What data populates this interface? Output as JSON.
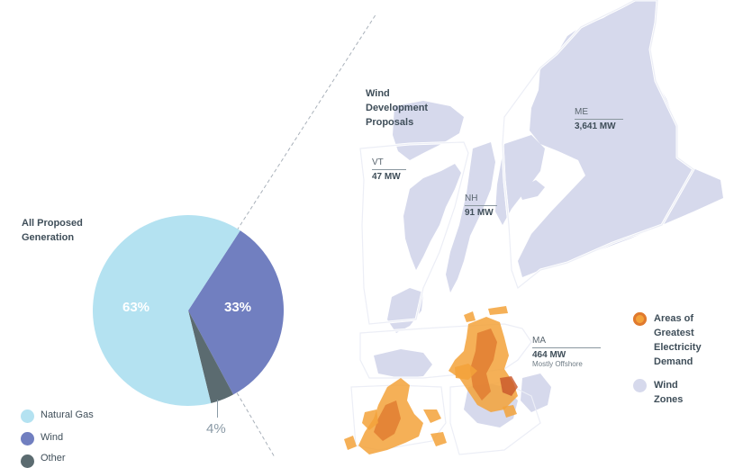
{
  "colors": {
    "natural_gas": "#b4e2f1",
    "wind": "#717fc0",
    "other": "#5b6b70",
    "wind_zone": "#d6d9ec",
    "demand_orange": "#f3a23a",
    "demand_dark": "#e07a2f",
    "state_border": "#ffffff",
    "dashed_line": "#a9b1ba"
  },
  "chart_data": [
    {
      "type": "pie",
      "title": "All Proposed Generation",
      "slices": [
        {
          "name": "Natural Gas",
          "value": 63,
          "label": "63%"
        },
        {
          "name": "Wind",
          "value": 33,
          "label": "33%"
        },
        {
          "name": "Other",
          "value": 4,
          "label": "4%"
        }
      ]
    }
  ],
  "pie_title": "All Proposed Generation",
  "pie_title_line1": "All Proposed",
  "pie_title_line2": "Generation",
  "pie_labels": {
    "natural_gas": "63%",
    "wind": "33%",
    "other": "4%"
  },
  "pie_legend": [
    "Natural Gas",
    "Wind",
    "Other"
  ],
  "map": {
    "title_line1": "Wind",
    "title_line2": "Development",
    "title_line3": "Proposals",
    "states": [
      {
        "code": "VT",
        "mw": "47 MW",
        "note": ""
      },
      {
        "code": "NH",
        "mw": "91 MW",
        "note": ""
      },
      {
        "code": "ME",
        "mw": "3,641 MW",
        "note": ""
      },
      {
        "code": "MA",
        "mw": "464 MW",
        "note": "Mostly Offshore"
      }
    ],
    "legend": [
      {
        "line1": "Areas of",
        "line2": "Greatest",
        "line3": "Electricity",
        "line4": "Demand",
        "icon": "demand-dot-icon"
      },
      {
        "line1": "Wind",
        "line2": "Zones",
        "line3": "",
        "line4": "",
        "icon": "wind-zone-dot-icon"
      }
    ]
  }
}
